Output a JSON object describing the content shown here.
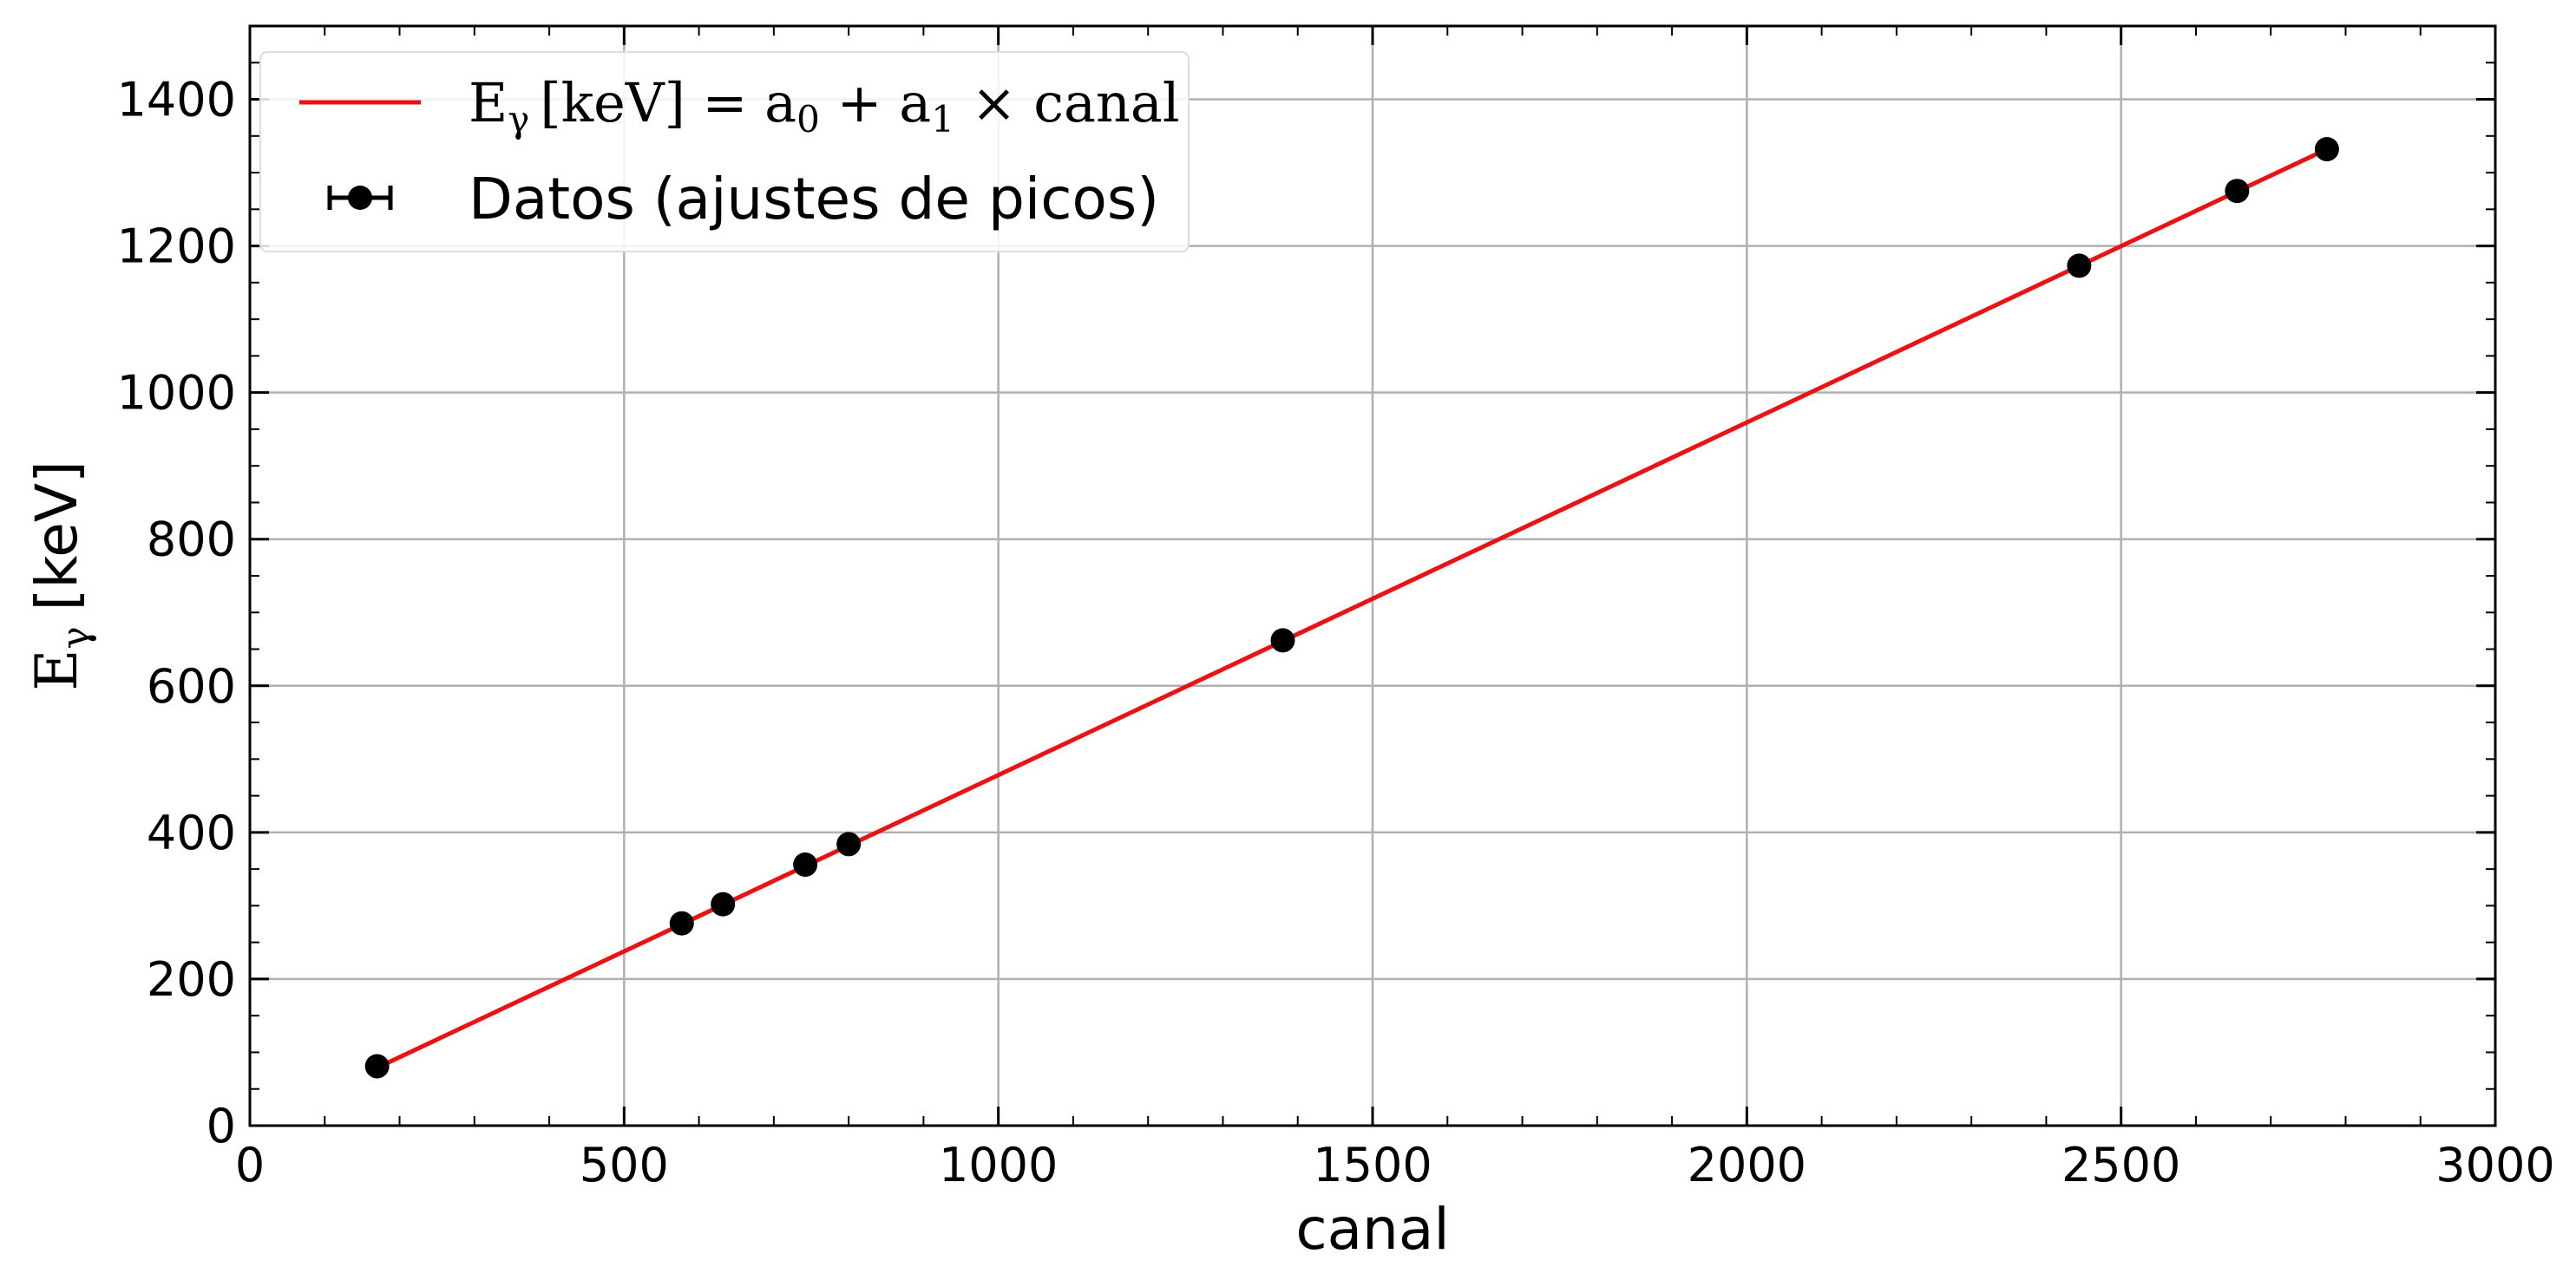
{
  "chart_data": {
    "type": "scatter",
    "xlabel": "canal",
    "ylabel_symbol": "E",
    "ylabel_sub": "γ",
    "ylabel_unit": "[keV]",
    "xlim": [
      0,
      3000
    ],
    "ylim": [
      0,
      1500
    ],
    "xticks": [
      0,
      500,
      1000,
      1500,
      2000,
      2500,
      3000
    ],
    "yticks": [
      0,
      200,
      400,
      600,
      800,
      1000,
      1200,
      1400
    ],
    "grid": true,
    "legend_position": "top-left",
    "fit": {
      "label_symbol": "E",
      "label_sub": "γ",
      "label_rest": "[keV] = a",
      "label_sub0": "0",
      "label_plus": " + a",
      "label_sub1": "1",
      "label_tail": " × canal",
      "color": "#ee1111",
      "x": [
        170,
        2775
      ],
      "y": [
        79,
        1332
      ]
    },
    "series": [
      {
        "name": "Datos (ajustes de picos)",
        "color": "#000000",
        "x": [
          170,
          577,
          632,
          742,
          800,
          1380,
          2444,
          2655,
          2775
        ],
        "y": [
          81,
          276,
          302,
          356,
          384,
          662,
          1173,
          1275,
          1332
        ]
      }
    ]
  }
}
